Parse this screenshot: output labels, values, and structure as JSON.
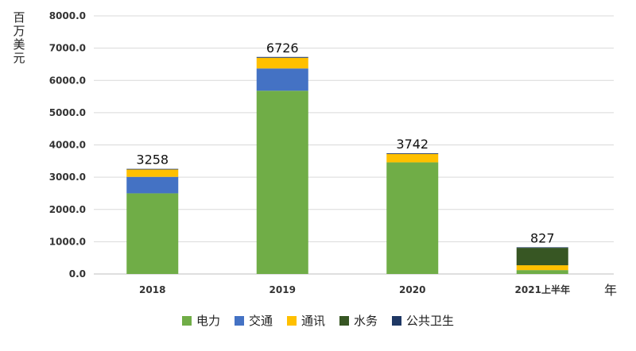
{
  "chart_data": {
    "type": "bar",
    "stacked": true,
    "categories": [
      "2018",
      "2019",
      "2020",
      "2021上半年"
    ],
    "series": [
      {
        "name": "电力",
        "color": "#70AD47",
        "values": [
          2500,
          5680,
          3460,
          120
        ]
      },
      {
        "name": "交通",
        "color": "#4472C4",
        "values": [
          510,
          690,
          0,
          0
        ]
      },
      {
        "name": "通讯",
        "color": "#FFC000",
        "values": [
          228,
          330,
          260,
          150
        ]
      },
      {
        "name": "水务",
        "color": "#375623",
        "values": [
          0,
          0,
          0,
          540
        ]
      },
      {
        "name": "公共卫生",
        "color": "#1F3864",
        "values": [
          20,
          26,
          22,
          17
        ]
      }
    ],
    "totals": [
      "3258",
      "6726",
      "3742",
      "827"
    ],
    "ylabel": "百万美元",
    "xlabel": "年",
    "ylim": [
      0,
      8000
    ],
    "yticks": [
      "0.0",
      "1000.0",
      "2000.0",
      "3000.0",
      "4000.0",
      "5000.0",
      "6000.0",
      "7000.0",
      "8000.0"
    ],
    "grid": true,
    "legend_position": "bottom"
  }
}
